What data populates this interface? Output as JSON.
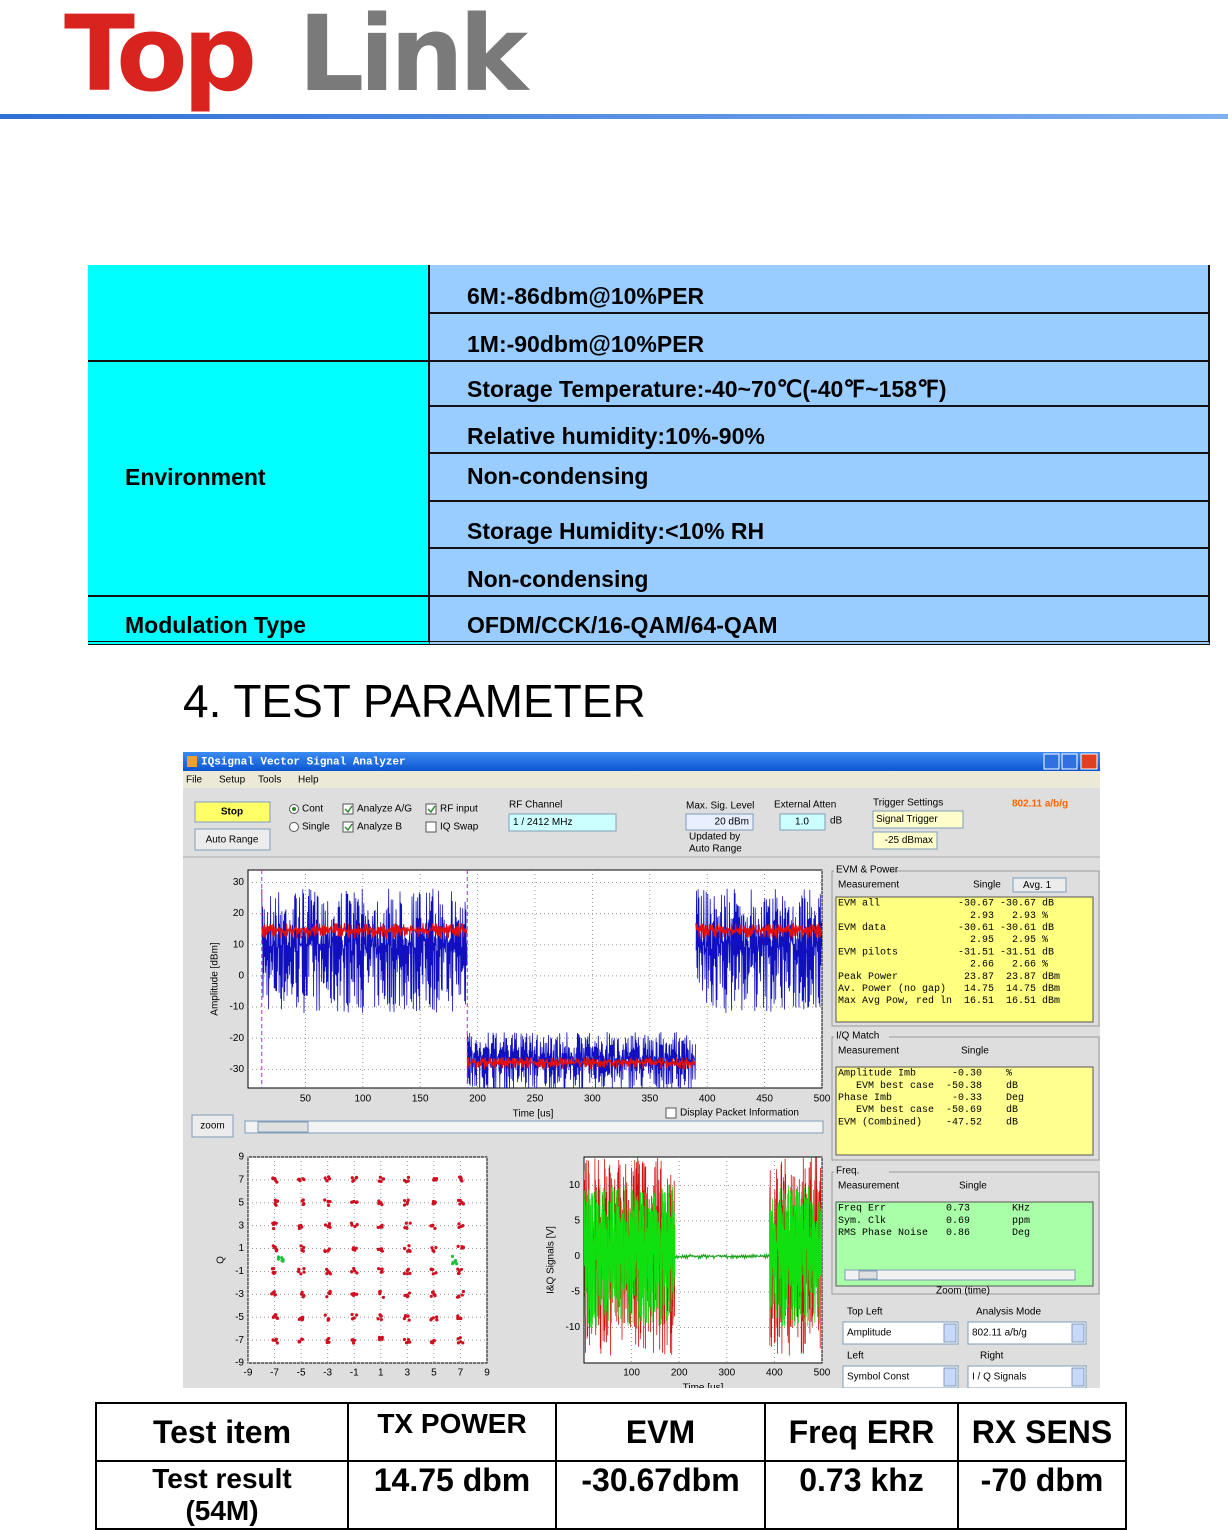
{
  "header": {
    "logo_top": "Top",
    "logo_link": "Link"
  },
  "spec_table": {
    "groups": [
      {
        "items": [
          "6M:-86dbm@10%PER",
          "1M:-90dbm@10%PER"
        ]
      },
      {
        "label": "Environment",
        "items": [
          "Storage Temperature:-40~70℃(-40℉~158℉)",
          "Relative humidity:10%-90%",
          "Non-condensing",
          "Storage Humidity:<10% RH",
          "Non-condensing"
        ]
      },
      {
        "label": "Modulation Type",
        "items": [
          "OFDM/CCK/16-QAM/64-QAM"
        ]
      }
    ]
  },
  "section_heading": "4.  TEST PARAMETER",
  "screenshot": {
    "title": "IQsignal Vector Signal Analyzer",
    "menu": [
      "File",
      "Setup",
      "Tools",
      "Help"
    ],
    "controls": {
      "stop": "Stop",
      "auto_range": "Auto Range",
      "cont": "Cont",
      "single": "Single",
      "analyze_ag": "Analyze A/G",
      "analyze_b": "Analyze B",
      "rf_input": "RF input",
      "iq_swap": "IQ Swap",
      "rf_channel_label": "RF Channel",
      "rf_channel": "1  /  2412 MHz",
      "max_sig_label": "Max. Sig. Level",
      "max_sig": "20  dBm",
      "updated_by": "Updated by",
      "auto_range_note": "Auto Range",
      "ext_atten_label": "External Atten",
      "ext_atten": "1.0",
      "ext_atten_unit": "dB",
      "trigger_label": "Trigger Settings",
      "trigger": "Signal Trigger",
      "trigger_level": "-25  dBmax",
      "standard": "802.11 a/b/g",
      "zoom": "zoom",
      "display_packet": "Display Packet Information",
      "zoom_time": "Zoom (time)",
      "top_left_label": "Top Left",
      "top_left": "Amplitude",
      "analysis_mode_label": "Analysis Mode",
      "analysis_mode": "802.11 a/b/g",
      "left_label": "Left",
      "left": "Symbol Const",
      "right_label": "Right",
      "right": "I / Q Signals"
    },
    "amplitude_plot": {
      "xlabel": "Time [us]",
      "ylabel": "Amplitude [dBm]",
      "xlim": [
        0,
        500
      ],
      "xticks": [
        50,
        100,
        150,
        200,
        250,
        300,
        350,
        400,
        450,
        500
      ],
      "ylim": [
        -36,
        34
      ],
      "yticks": [
        30,
        20,
        10,
        0,
        -10,
        -20,
        -30
      ]
    },
    "constellation_plot": {
      "ylabel": "Q",
      "xlim": [
        -9,
        9
      ],
      "xticks": [
        -9,
        -7,
        -5,
        -3,
        -1,
        1,
        3,
        5,
        7,
        9
      ],
      "ylim": [
        -9,
        9
      ],
      "yticks": [
        9,
        7,
        5,
        3,
        1,
        -1,
        -3,
        -5,
        -7,
        -9
      ]
    },
    "iq_plot": {
      "xlabel": "Time [us]",
      "ylabel": "I&Q Signals [V]",
      "xlim": [
        0,
        500
      ],
      "xticks": [
        100,
        200,
        300,
        400,
        500
      ],
      "ylim": [
        -15,
        14
      ],
      "yticks": [
        10,
        5,
        0,
        -5,
        -10
      ]
    },
    "evm_panel": {
      "title": "EVM & Power",
      "measurement": "Measurement",
      "single": "Single",
      "avg": "Avg.  1",
      "rows": [
        "EVM all             -30.67 -30.67 dB",
        "                      2.93   2.93 %",
        "EVM data            -30.61 -30.61 dB",
        "                      2.95   2.95 %",
        "EVM pilots          -31.51 -31.51 dB",
        "                      2.66   2.66 %",
        "Peak Power           23.87  23.87 dBm",
        "Av. Power (no gap)   14.75  14.75 dBm",
        "Max Avg Pow, red ln  16.51  16.51 dBm"
      ]
    },
    "iq_match_panel": {
      "title": "I/Q Match",
      "measurement": "Measurement",
      "single": "Single",
      "rows": [
        "Amplitude Imb      -0.30    %",
        "   EVM best case  -50.38    dB",
        "Phase Imb          -0.33    Deg",
        "   EVM best case  -50.69    dB",
        "EVM (Combined)    -47.52    dB"
      ]
    },
    "freq_panel": {
      "title": "Freq.",
      "measurement": "Measurement",
      "single": "Single",
      "rows": [
        "Freq Err          0.73       KHz",
        "Sym. Clk          0.69       ppm",
        "RMS Phase Noise   0.86       Deg"
      ]
    }
  },
  "result_table": {
    "header": [
      "Test item",
      "TX POWER",
      "EVM",
      "Freq ERR",
      "RX SENS"
    ],
    "row": [
      "Test result (54M)",
      "14.75 dbm",
      "-30.67dbm",
      "0.73 khz",
      "-70 dbm"
    ]
  }
}
